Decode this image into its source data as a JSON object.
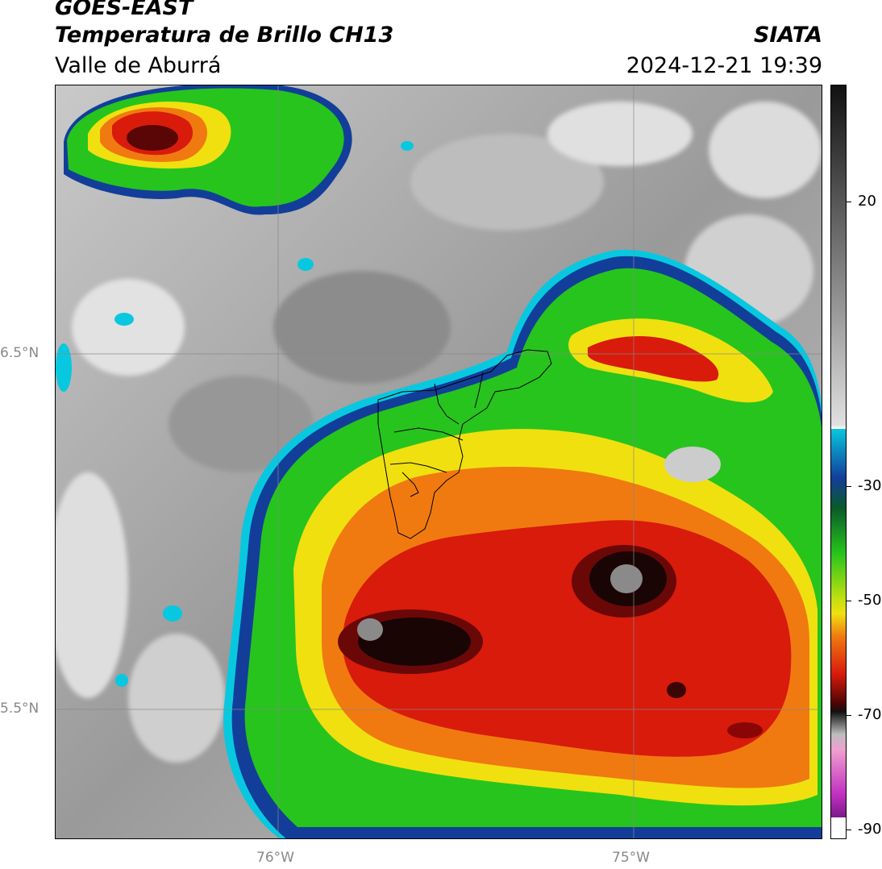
{
  "header": {
    "platform": "GOES-EAST",
    "product": "Temperatura de Brillo CH13",
    "region": "Valle de Aburrá",
    "source": "SIATA",
    "timestamp": "2024-12-21 19:39"
  },
  "map": {
    "lat_labels": [
      "6.5°N",
      "5.5°N"
    ],
    "lon_labels": [
      "76°W",
      "75°W"
    ]
  },
  "colorbar": {
    "ticks": [
      "20",
      "-30",
      "-50",
      "-70",
      "-90"
    ]
  },
  "colors": {
    "cold_core": "#1a0505",
    "red": "#d81b0b",
    "orange": "#f07a10",
    "yellow": "#f0e010",
    "green": "#27c41d",
    "blue": "#123e9a",
    "cyan": "#08c8e0",
    "clear_gray": "#9b9b9b"
  }
}
